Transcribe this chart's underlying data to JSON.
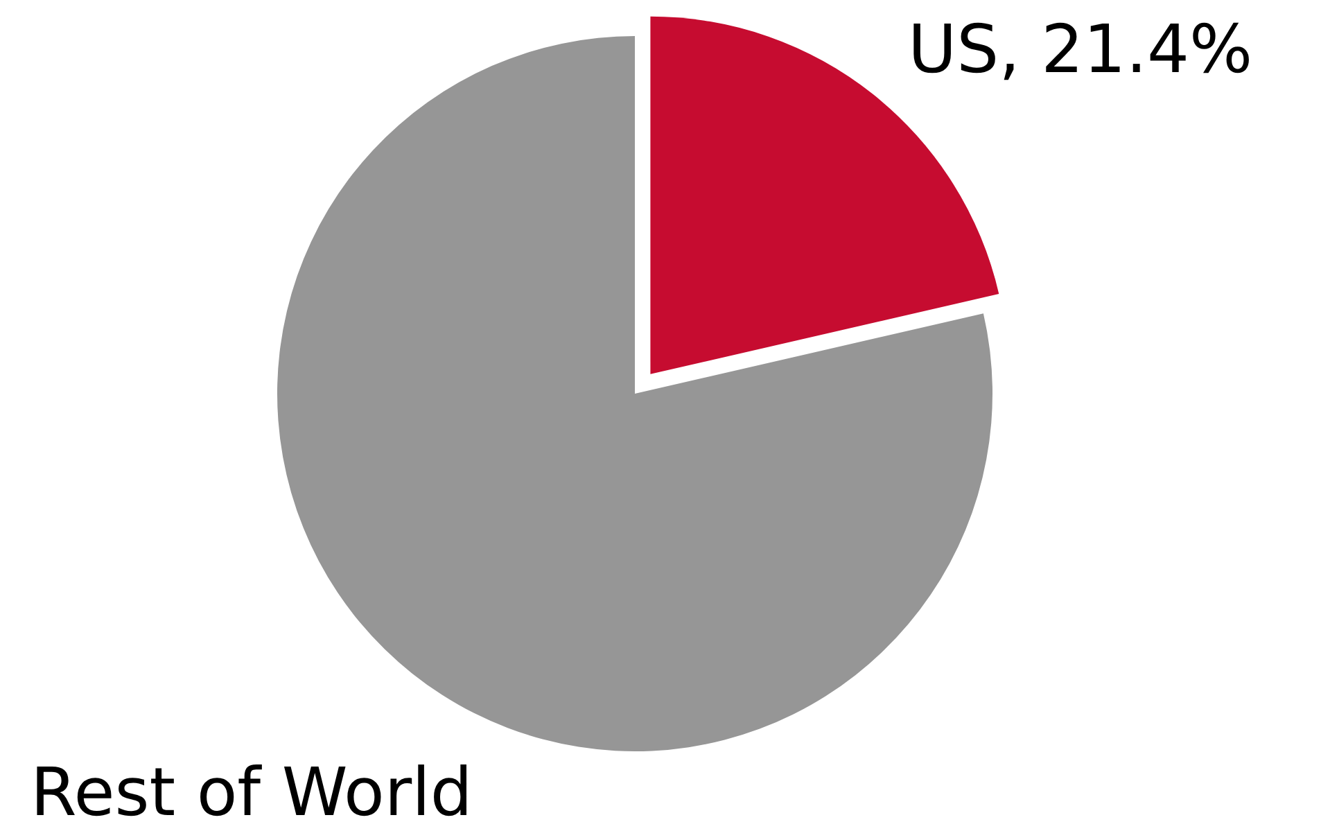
{
  "chart_data": {
    "type": "pie",
    "categories": [
      "US",
      "Rest of World"
    ],
    "values": [
      21.4,
      78.6
    ],
    "colors": [
      "#c60c30",
      "#969696"
    ],
    "value_labels": [
      "21.4%",
      null
    ]
  }
}
